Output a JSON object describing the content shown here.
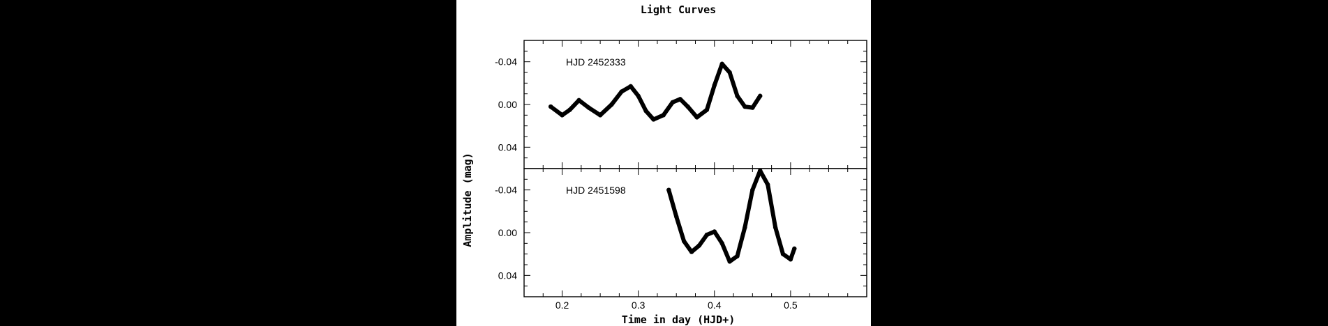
{
  "chart_data": {
    "type": "line",
    "title": "Light Curves",
    "xlabel": "Time in day (HJD+)",
    "ylabel": "Amplitude (mag)",
    "xlim": [
      0.15,
      0.6
    ],
    "x_ticks": [
      0.2,
      0.3,
      0.4,
      0.5
    ],
    "x_tick_labels": [
      "0.2",
      "0.3",
      "0.4",
      "0.5"
    ],
    "y_inverted": true,
    "grid": false,
    "legend": "none",
    "line_color": "#000000",
    "panels": [
      {
        "annotation": "HJD 2452333",
        "ylim": [
          -0.06,
          0.06
        ],
        "y_ticks": [
          -0.04,
          0.0,
          0.04
        ],
        "y_tick_labels": [
          "-0.04",
          "0.00",
          "0.04"
        ],
        "x": [
          0.185,
          0.2,
          0.21,
          0.222,
          0.235,
          0.25,
          0.265,
          0.278,
          0.29,
          0.3,
          0.31,
          0.32,
          0.333,
          0.345,
          0.355,
          0.365,
          0.377,
          0.39,
          0.4,
          0.41,
          0.42,
          0.43,
          0.44,
          0.45,
          0.46
        ],
        "y": [
          0.002,
          0.01,
          0.005,
          -0.004,
          0.003,
          0.01,
          0.0,
          -0.012,
          -0.017,
          -0.008,
          0.006,
          0.014,
          0.01,
          -0.002,
          -0.005,
          0.002,
          0.012,
          0.005,
          -0.018,
          -0.038,
          -0.03,
          -0.008,
          0.002,
          0.003,
          -0.008
        ]
      },
      {
        "annotation": "HJD 2451598",
        "ylim": [
          -0.06,
          0.06
        ],
        "y_ticks": [
          -0.04,
          0.0,
          0.04
        ],
        "y_tick_labels": [
          "-0.04",
          "0.00",
          "0.04"
        ],
        "x": [
          0.34,
          0.35,
          0.36,
          0.37,
          0.38,
          0.39,
          0.4,
          0.41,
          0.42,
          0.43,
          0.44,
          0.45,
          0.46,
          0.47,
          0.48,
          0.49,
          0.5,
          0.505
        ],
        "y": [
          -0.04,
          -0.015,
          0.008,
          0.018,
          0.012,
          0.002,
          -0.001,
          0.01,
          0.027,
          0.022,
          -0.005,
          -0.04,
          -0.058,
          -0.045,
          -0.005,
          0.02,
          0.025,
          0.015
        ]
      }
    ]
  }
}
